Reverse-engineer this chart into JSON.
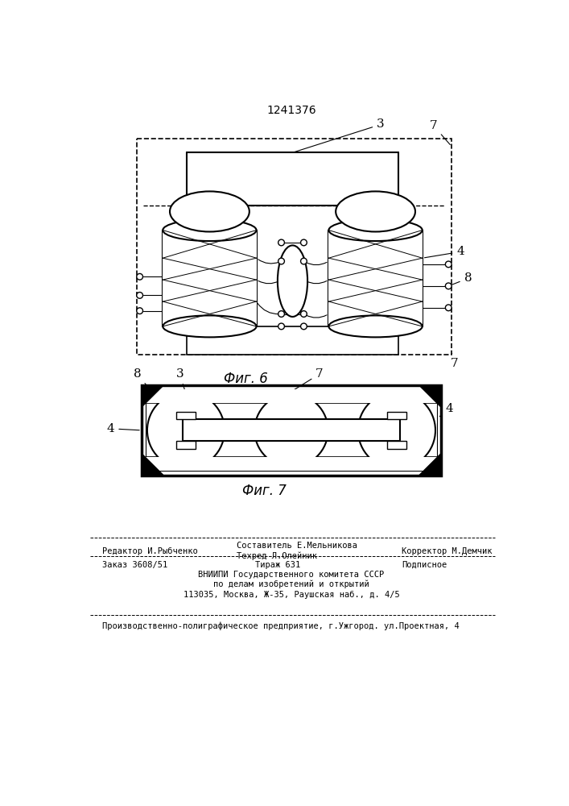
{
  "title": "1241376",
  "fig6_label": "Фиг. 6",
  "fig7_label": "Фиг. 7",
  "bg_color": "#ffffff",
  "line_color": "#000000",
  "footer_line1_left": "Редактор И.Рыбченко",
  "footer_line1_center_top": "Составитель Е.Мельникова",
  "footer_line1_center_bot": "Техред Л.Олейник",
  "footer_line1_right": "Корректор М.Демчик",
  "footer_line2_left": "Заказ 3608/51",
  "footer_line2_center": "Тираж 631",
  "footer_line2_right": "Подписное",
  "footer_line3": "ВНИИПИ Государственного комитета СССР",
  "footer_line4": "по делам изобретений и открытий",
  "footer_line5": "113035, Москва, Ж-35, Раушская наб., д. 4/5",
  "footer_line6": "Производственно-полиграфическое предприятие, г.Ужгород. ул.Проектная, 4"
}
